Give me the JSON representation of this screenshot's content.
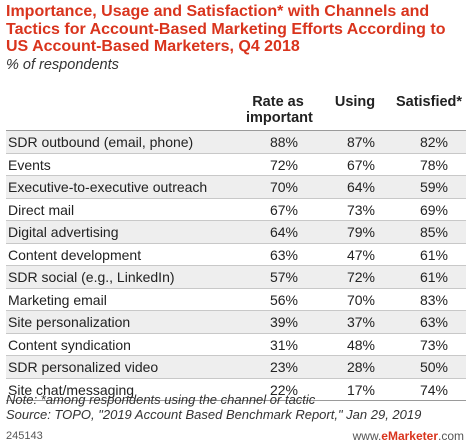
{
  "chart_data": {
    "type": "table",
    "title": "Importance, Usage and Satisfaction* with Channels and Tactics for Account-Based Marketing Efforts According to US Account-Based Marketers, Q4 2018",
    "subtitle": "% of respondents",
    "columns": [
      "Rate as important",
      "Using",
      "Satisfied*"
    ],
    "rows": [
      {
        "label": "SDR outbound (email, phone)",
        "values": [
          "88%",
          "87%",
          "82%"
        ]
      },
      {
        "label": "Events",
        "values": [
          "72%",
          "67%",
          "78%"
        ]
      },
      {
        "label": "Executive-to-executive outreach",
        "values": [
          "70%",
          "64%",
          "59%"
        ]
      },
      {
        "label": "Direct mail",
        "values": [
          "67%",
          "73%",
          "69%"
        ]
      },
      {
        "label": "Digital advertising",
        "values": [
          "64%",
          "79%",
          "85%"
        ]
      },
      {
        "label": "Content development",
        "values": [
          "63%",
          "47%",
          "61%"
        ]
      },
      {
        "label": "SDR social (e.g., LinkedIn)",
        "values": [
          "57%",
          "72%",
          "61%"
        ]
      },
      {
        "label": "Marketing email",
        "values": [
          "56%",
          "70%",
          "83%"
        ]
      },
      {
        "label": "Site personalization",
        "values": [
          "39%",
          "37%",
          "63%"
        ]
      },
      {
        "label": "Content syndication",
        "values": [
          "31%",
          "48%",
          "73%"
        ]
      },
      {
        "label": "SDR personalized video",
        "values": [
          "23%",
          "28%",
          "50%"
        ]
      },
      {
        "label": "Site chat/messaging",
        "values": [
          "22%",
          "17%",
          "74%"
        ]
      }
    ]
  },
  "header": {
    "col1_line1": "Rate as",
    "col1_line2": "important",
    "col2": "Using",
    "col3": "Satisfied*"
  },
  "notes": {
    "note": "Note: *among respondents using the channel or tactic",
    "source": "Source: TOPO, \"2019 Account Based Benchmark Report,\" Jan 29, 2019"
  },
  "footer": {
    "id": "245143",
    "brand_prefix": "www.",
    "brand_name": "eMarketer",
    "brand_suffix": ".com"
  },
  "colors": {
    "title": "#d9341d",
    "stripe": "#eeeeee"
  }
}
